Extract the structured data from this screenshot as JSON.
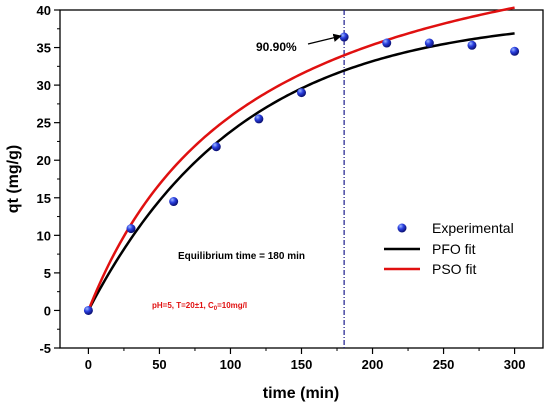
{
  "chart_data": {
    "type": "scatter",
    "xlabel": "time (min)",
    "ylabel": "qt (mg/g)",
    "xlim": [
      -20,
      320
    ],
    "ylim": [
      -5,
      40
    ],
    "xticks": [
      0,
      50,
      100,
      150,
      200,
      250,
      300
    ],
    "yticks": [
      -5,
      0,
      5,
      10,
      15,
      20,
      25,
      30,
      35,
      40
    ],
    "series": [
      {
        "name": "Experimental",
        "kind": "points",
        "color": "#2a2ad6",
        "x": [
          0,
          30,
          60,
          90,
          120,
          150,
          180,
          210,
          240,
          270,
          300
        ],
        "y": [
          0,
          10.9,
          14.5,
          21.8,
          25.5,
          29.0,
          36.4,
          35.6,
          35.6,
          35.3,
          34.5
        ]
      },
      {
        "name": "PFO fit",
        "kind": "line",
        "color": "#000000",
        "model": "pfo",
        "params": {
          "qe": 39.3,
          "k1": 0.0093
        }
      },
      {
        "name": "PSO fit",
        "kind": "line",
        "color": "#e01010",
        "model": "pso",
        "params": {
          "qe": 56.0,
          "k2": 0.000153
        }
      }
    ],
    "vline": {
      "x": 180,
      "color": "#1a1a8c"
    },
    "legend_position": "center-right",
    "annotations": {
      "percent": "90.90%",
      "equilibrium": "Equilibrium time = 180 min",
      "conditions_prefix": "pH=5, T=20±1, C",
      "conditions_sub": "0",
      "conditions_suffix": "=10mg/l"
    }
  }
}
